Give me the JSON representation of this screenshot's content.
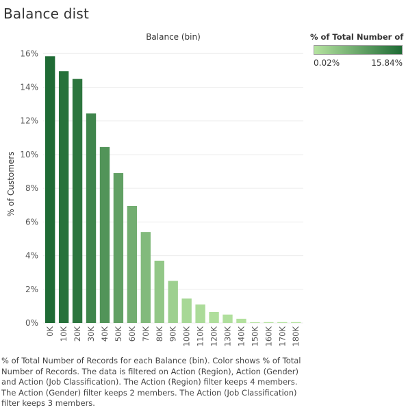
{
  "sheet_title": "Balance dist",
  "legend": {
    "title": "% of Total Number of R..",
    "min_label": "0.02%",
    "max_label": "15.84%",
    "color_low": "#b5e3a0",
    "color_high": "#1f6b35"
  },
  "caption": "% of Total Number of Records for each Balance (bin).  Color shows % of Total Number of Records. The data is filtered on Action (Region), Action (Gender) and Action (Job Classification). The Action (Region) filter keeps 4 members. The Action (Gender) filter keeps 2 members. The Action (Job Classification) filter keeps 3 members.",
  "chart_data": {
    "type": "bar",
    "title": "Balance (bin)",
    "xlabel": "",
    "ylabel": "% of Customers",
    "categories": [
      "0K",
      "10K",
      "20K",
      "30K",
      "40K",
      "50K",
      "60K",
      "70K",
      "80K",
      "90K",
      "100K",
      "110K",
      "120K",
      "130K",
      "140K",
      "150K",
      "160K",
      "170K",
      "180K"
    ],
    "values": [
      15.84,
      14.95,
      14.5,
      12.45,
      10.45,
      8.9,
      6.95,
      5.4,
      3.7,
      2.5,
      1.45,
      1.1,
      0.65,
      0.5,
      0.25,
      0.02,
      0.05,
      0.05,
      0.05
    ],
    "ylim": [
      0,
      16.5
    ],
    "yticks": [
      0,
      2,
      4,
      6,
      8,
      10,
      12,
      14,
      16
    ],
    "ytick_labels": [
      "0%",
      "2%",
      "4%",
      "6%",
      "8%",
      "10%",
      "12%",
      "14%",
      "16%"
    ],
    "grid": true,
    "color_range": [
      0.02,
      15.84
    ]
  }
}
